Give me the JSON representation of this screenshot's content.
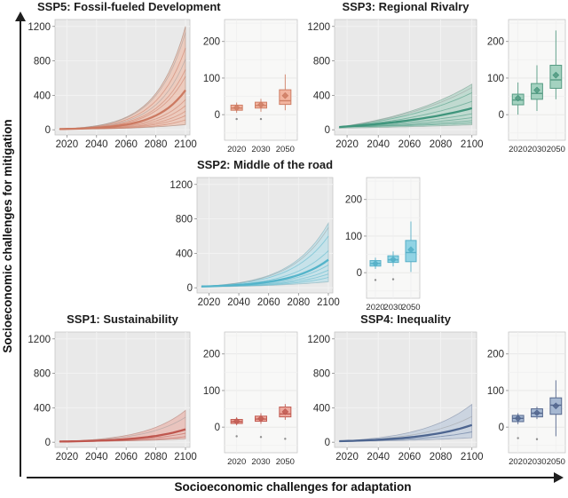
{
  "figure": {
    "y_axis_label": "Socioeconomic challenges for mitigation",
    "x_axis_label": "Socioeconomic challenges for adaptation"
  },
  "chart_data": [
    {
      "id": "ssp5",
      "title": "SSP5: Fossil-fueled Development",
      "type": "area+line with companion box",
      "colors": {
        "line": "#cc7a62",
        "band_fill": "#efae94",
        "band_edge": "#ae8d80",
        "box_fill": "#f2b5a0",
        "box_edge": "#cf7f66"
      },
      "fan": {
        "x": [
          2015,
          2100
        ],
        "xlim": [
          2012,
          2103
        ],
        "ylim": [
          -60,
          1280
        ],
        "xticks": [
          2020,
          2040,
          2060,
          2080,
          2100
        ],
        "yticks": [
          0,
          400,
          800,
          1200
        ],
        "start": 8,
        "k": 4.4,
        "band": {
          "lower": 60,
          "upper": 1200
        },
        "lines": [
          950,
          700,
          620,
          350,
          280,
          215,
          165,
          115
        ],
        "gray_lines": [
          1130,
          820
        ],
        "median": 460
      },
      "box": {
        "ylim": [
          -70,
          260
        ],
        "yticks": [
          0,
          100,
          200
        ],
        "categories": [
          "2020",
          "2030",
          "2050"
        ],
        "items": [
          {
            "low": 5,
            "q1": 12,
            "median": 18,
            "q3": 26,
            "high": 33,
            "mean": 19,
            "outliers": [
              -12
            ]
          },
          {
            "low": 8,
            "q1": 18,
            "median": 25,
            "q3": 34,
            "high": 43,
            "mean": 27,
            "outliers": [
              -12
            ]
          },
          {
            "low": 12,
            "q1": 28,
            "median": 38,
            "q3": 68,
            "high": 110,
            "mean": 52,
            "outliers": []
          }
        ]
      }
    },
    {
      "id": "ssp3",
      "title": "SSP3: Regional Rivalry",
      "type": "area+line with companion box",
      "colors": {
        "line": "#3f957c",
        "band_fill": "#97cbb8",
        "band_edge": "#88a89c",
        "box_fill": "#a4d2c0",
        "box_edge": "#569b83"
      },
      "fan": {
        "x": [
          2015,
          2100
        ],
        "xlim": [
          2012,
          2103
        ],
        "ylim": [
          -60,
          1280
        ],
        "xticks": [
          2020,
          2040,
          2060,
          2080,
          2100
        ],
        "yticks": [
          0,
          400,
          800,
          1200
        ],
        "start": 32,
        "k": 1.4,
        "band": {
          "lower": 58,
          "upper": 530
        },
        "lines": [
          430,
          330,
          185,
          140,
          105,
          80
        ],
        "gray_lines": [
          490
        ],
        "median": 250
      },
      "box": {
        "ylim": [
          -70,
          260
        ],
        "yticks": [
          0,
          100,
          200
        ],
        "categories": [
          "2020",
          "2030",
          "2050"
        ],
        "items": [
          {
            "low": 0,
            "q1": 27,
            "median": 40,
            "q3": 56,
            "high": 88,
            "mean": 45,
            "outliers": []
          },
          {
            "low": 10,
            "q1": 42,
            "median": 58,
            "q3": 85,
            "high": 135,
            "mean": 67,
            "outliers": []
          },
          {
            "low": 42,
            "q1": 72,
            "median": 95,
            "q3": 135,
            "high": 230,
            "mean": 108,
            "outliers": []
          }
        ]
      }
    },
    {
      "id": "ssp2",
      "title": "SSP2: Middle of the road",
      "type": "area+line with companion box",
      "colors": {
        "line": "#54b4ca",
        "band_fill": "#a6dcea",
        "band_edge": "#8fb6bf",
        "box_fill": "#90d3e4",
        "box_edge": "#57afc7"
      },
      "fan": {
        "x": [
          2015,
          2100
        ],
        "xlim": [
          2012,
          2103
        ],
        "ylim": [
          -60,
          1280
        ],
        "xticks": [
          2020,
          2040,
          2060,
          2080,
          2100
        ],
        "yticks": [
          0,
          400,
          800,
          1200
        ],
        "start": 15,
        "k": 3.4,
        "band": {
          "lower": 70,
          "upper": 750
        },
        "lines": [
          600,
          430,
          265,
          205,
          160,
          120
        ],
        "gray_lines": [
          700
        ],
        "median": 325
      },
      "box": {
        "ylim": [
          -70,
          260
        ],
        "yticks": [
          0,
          100,
          200
        ],
        "categories": [
          "2020",
          "2030",
          "2050"
        ],
        "items": [
          {
            "low": 10,
            "q1": 18,
            "median": 25,
            "q3": 33,
            "high": 41,
            "mean": 25,
            "outliers": [
              -20
            ]
          },
          {
            "low": 17,
            "q1": 28,
            "median": 35,
            "q3": 46,
            "high": 58,
            "mean": 36,
            "outliers": [
              -18
            ]
          },
          {
            "low": 2,
            "q1": 30,
            "median": 55,
            "q3": 88,
            "high": 140,
            "mean": 63,
            "outliers": []
          }
        ]
      }
    },
    {
      "id": "ssp1",
      "title": "SSP1: Sustainability",
      "type": "area+line with companion box",
      "colors": {
        "line": "#bf574f",
        "band_fill": "#e9a094",
        "band_edge": "#bb8f86",
        "box_fill": "#eda89d",
        "box_edge": "#c25d54"
      },
      "fan": {
        "x": [
          2015,
          2100
        ],
        "xlim": [
          2012,
          2103
        ],
        "ylim": [
          -60,
          1280
        ],
        "xticks": [
          2020,
          2040,
          2060,
          2080,
          2100
        ],
        "yticks": [
          0,
          400,
          800,
          1200
        ],
        "start": 8,
        "k": 3.1,
        "band": {
          "lower": 40,
          "upper": 370
        },
        "lines": [
          105,
          65
        ],
        "gray_lines": [
          290
        ],
        "median": 150
      },
      "box": {
        "ylim": [
          -70,
          260
        ],
        "yticks": [
          0,
          100,
          200
        ],
        "categories": [
          "2020",
          "2030",
          "2050"
        ],
        "items": [
          {
            "low": 5,
            "q1": 10,
            "median": 15,
            "q3": 21,
            "high": 27,
            "mean": 16,
            "outliers": [
              -25
            ]
          },
          {
            "low": 9,
            "q1": 16,
            "median": 22,
            "q3": 30,
            "high": 38,
            "mean": 23,
            "outliers": [
              -27
            ]
          },
          {
            "low": 20,
            "q1": 28,
            "median": 36,
            "q3": 55,
            "high": 63,
            "mean": 42,
            "outliers": [
              -32
            ]
          }
        ]
      }
    },
    {
      "id": "ssp4",
      "title": "SSP4: Inequality",
      "type": "area+line with companion box",
      "colors": {
        "line": "#4d6590",
        "band_fill": "#aebfd8",
        "band_edge": "#8d9ab0",
        "box_fill": "#a6b8d2",
        "box_edge": "#56688e"
      },
      "fan": {
        "x": [
          2015,
          2100
        ],
        "xlim": [
          2012,
          2103
        ],
        "ylim": [
          -60,
          1280
        ],
        "xticks": [
          2020,
          2040,
          2060,
          2080,
          2100
        ],
        "yticks": [
          0,
          400,
          800,
          1200
        ],
        "start": 12,
        "k": 2.6,
        "band": {
          "lower": 52,
          "upper": 440
        },
        "lines": [
          120
        ],
        "gray_lines": [
          300
        ],
        "median": 200
      },
      "box": {
        "ylim": [
          -70,
          260
        ],
        "yticks": [
          0,
          100,
          200
        ],
        "categories": [
          "2020",
          "2030",
          "2050"
        ],
        "items": [
          {
            "low": 8,
            "q1": 15,
            "median": 24,
            "q3": 32,
            "high": 38,
            "mean": 24,
            "outliers": [
              -30
            ]
          },
          {
            "low": 22,
            "q1": 28,
            "median": 38,
            "q3": 50,
            "high": 56,
            "mean": 39,
            "outliers": [
              -33
            ]
          },
          {
            "low": -25,
            "q1": 35,
            "median": 60,
            "q3": 80,
            "high": 128,
            "mean": 58,
            "outliers": []
          }
        ]
      }
    }
  ]
}
